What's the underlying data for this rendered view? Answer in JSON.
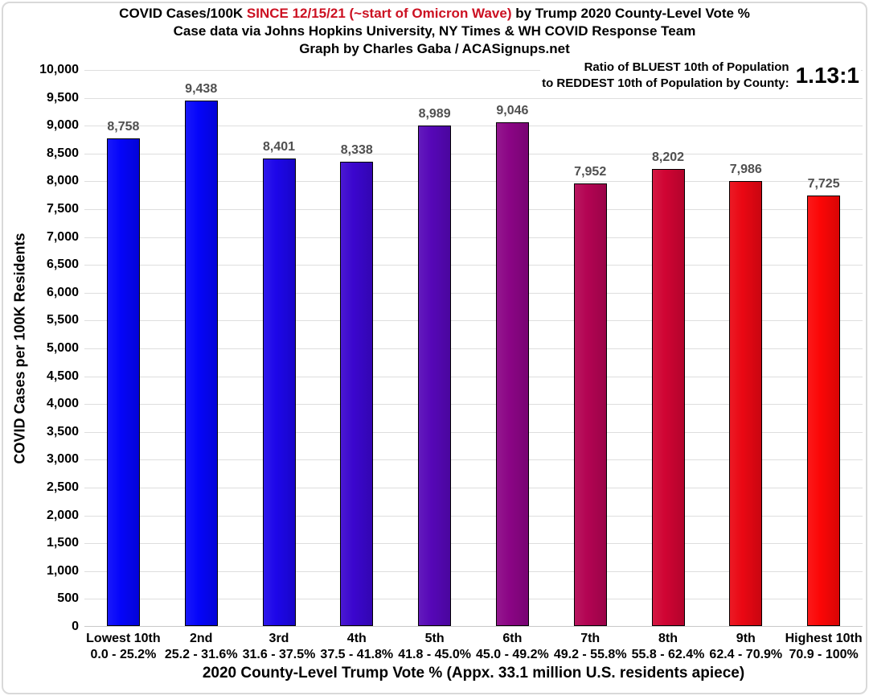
{
  "title": {
    "part1": "COVID Cases/100K ",
    "highlight": "SINCE 12/15/21 (~start of Omicron Wave)",
    "part2": " by Trump 2020 County-Level Vote %",
    "line2": "Case data via Johns Hopkins University, NY Times & WH COVID Response Team",
    "line3": "Graph by Charles Gaba / ACASignups.net"
  },
  "ratio": {
    "line1": "Ratio of BLUEST 10th of Population",
    "line2": "to REDDEST 10th of Population by County:",
    "value": "1.13:1"
  },
  "colors": {
    "title_highlight": "#cc1122",
    "gridline": "#dedede",
    "bar_border": "#000000",
    "data_label": "#505050",
    "frame_border": "#d9d9d9"
  },
  "chart_data": {
    "type": "bar",
    "title": "COVID Cases/100K SINCE 12/15/21 (~start of Omicron Wave) by Trump 2020 County-Level Vote %",
    "subtitle": "Case data via Johns Hopkins University, NY Times & WH COVID Response Team",
    "credit": "Graph by Charles Gaba / ACASignups.net",
    "annotation": "Ratio of BLUEST 10th of Population to REDDEST 10th of Population by County: 1.13:1",
    "xlabel": "2020 County-Level Trump Vote % (Appx. 33.1 million U.S. residents apiece)",
    "ylabel": "COVID Cases per 100K Residents",
    "ylim": [
      0,
      10000
    ],
    "ytick_step": 500,
    "grid": true,
    "legend": "none",
    "categories": [
      "Lowest 10th",
      "2nd",
      "3rd",
      "4th",
      "5th",
      "6th",
      "7th",
      "8th",
      "9th",
      "Highest 10th"
    ],
    "category_ranges": [
      "0.0 - 25.2%",
      "25.2 - 31.6%",
      "31.6 - 37.5%",
      "37.5 - 41.8%",
      "41.8 - 45.0%",
      "45.0 - 49.2%",
      "49.2 - 55.8%",
      "55.8 - 62.4%",
      "62.4 - 70.9%",
      "70.9 - 100%"
    ],
    "values": [
      8758,
      9438,
      8401,
      8338,
      8989,
      9046,
      7952,
      8202,
      7986,
      7725
    ],
    "bar_colors": [
      "#0505fa",
      "#0505fa",
      "#1d06e9",
      "#3b06ce",
      "#5607b7",
      "#8b0585",
      "#b30453",
      "#d00433",
      "#ea0713",
      "#fb0606"
    ]
  }
}
